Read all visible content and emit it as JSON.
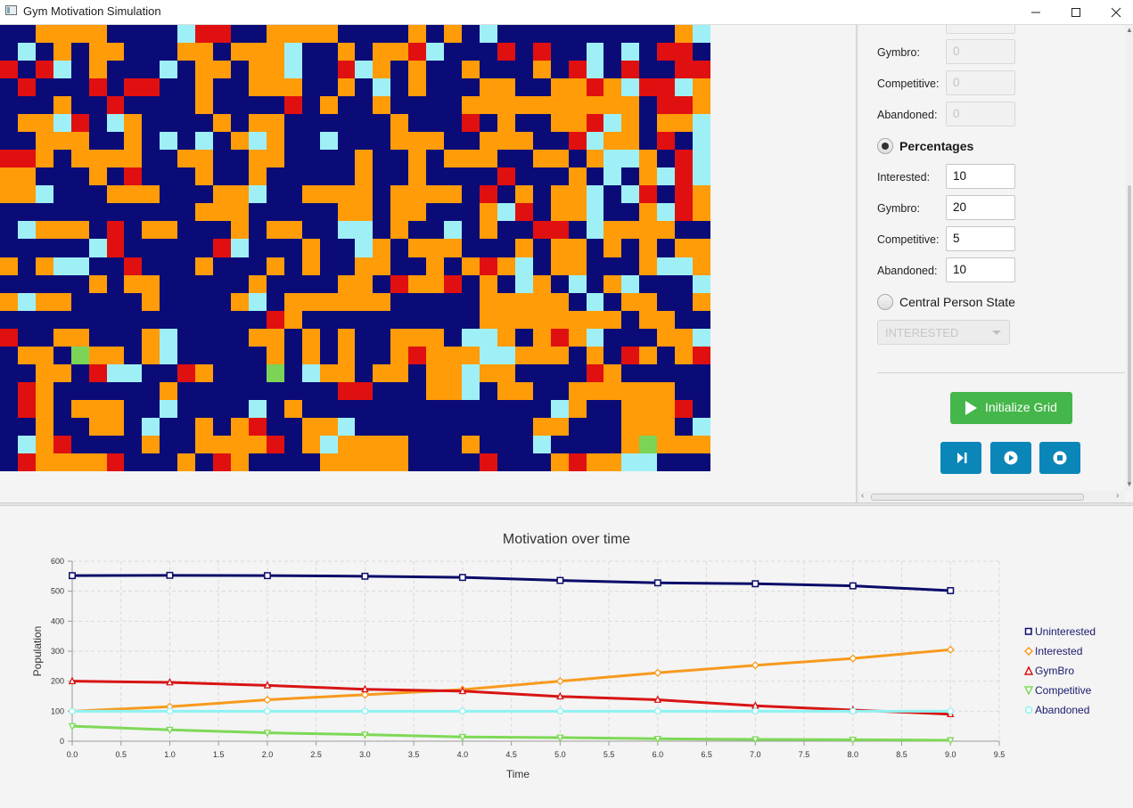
{
  "window": {
    "title": "Gym Motivation Simulation"
  },
  "grid": {
    "columns": 40,
    "rows": 25,
    "legend_colors": {
      "N": "#0b0b78",
      "O": "#ff9c08",
      "R": "#e01010",
      "C": "#9ff0f6",
      "G": "#7cd457"
    },
    "cells": [
      "NNOOOONNNNCRRNNOOOONNNNONONCNNNNNNNNNNOC",
      "NCNONOONNNOONOOOCNNONOORCNNNRNRNNCNCNRRN",
      "RNRCNONNNCNOONOOCNNRCONONNONNNONRCNRNNRR",
      "NRNNNRNRRNNONNOOONNONCNONNNOONNOOROCRRCO",
      "NNNONNRNNNNONNNNRNONNONNNNOOOOOOOOOONRRO",
      "NOOCRNCONNNNONOONNNNNNONNNRNONNOORCONOOC",
      "NNOOONNONCNCNOCONNCNNNOOONNOOONNRCOONRNC",
      "RRONOOOONNOONNOONNNNONNONOOONNOONOCCONRC",
      "OONNNONRNNNONNONNNNNONNONNNNRNNNONCNOCRC",
      "OOCNNNOOONNNOOCNNOOOONOOOONRNONOOCNCRNRO",
      "NNNNNNNNNNNOOONNNNNOONOONNNOCRNOOCNNOCRO",
      "NCOOONRNOONNNONOONNCCNONNCNONNRRNCOOOONN",
      "NNNNNCRNNNNNRCNNNONNCONOOONNNONOONONONOO",
      "ONOCCNNRNNNONNNONONNOONNONOROCNOONNNOCCO",
      "NNNNNONOONNNNNONNNNOONROORNONCONCNOCNNNC",
      "OCOONNNNONNNNOCNOOOOOONNNNNOOOOONCNOONNO",
      "NNNNNNNNNNNNNNNRONNNNNNNNNNOOOOOOOONOONN",
      "RNNOONNNOCNNNNOONONONNOOONCCONOROCNNNOOC",
      "NOONGOONOCNNNNNONONONNOROOOCCOOONONRONOR",
      "NNOONRCCNNRONNNGNCOONOONOOCOONNNNRONNNNN",
      "NRONNNNNNONNNNNNNNNRRNNNOOCNOONNOOOOOONN",
      "NRONOOONNCNNNNCNONNNNNNNNNNNNNNCONNOOORN",
      "NNONNOONCNNONORNNOOCNNNNNNNNNNOONNNOOONC",
      "NCORNNNNONNOOOORNOCOOOONNNONNNCNNNNOGOOO",
      "NROOOORNNNONRONNNNOOOOONNNNRNNNOROOCCNNN"
    ]
  },
  "panel": {
    "counts": {
      "gymbro_label": "Gymbro:",
      "gymbro_value": "0",
      "competitive_label": "Competitive:",
      "competitive_value": "0",
      "abandoned_label": "Abandoned:",
      "abandoned_value": "0"
    },
    "percentages": {
      "label": "Percentages",
      "interested_label": "Interested:",
      "interested_value": "10",
      "gymbro_label": "Gymbro:",
      "gymbro_value": "20",
      "competitive_label": "Competitive:",
      "competitive_value": "5",
      "abandoned_label": "Abandoned:",
      "abandoned_value": "10"
    },
    "central": {
      "label": "Central Person State",
      "selected": "INTERESTED"
    },
    "init_button_label": "Initialize Grid"
  },
  "colors": {
    "accent_green": "#45b649",
    "control_blue": "#0b86b8"
  },
  "chart_data": {
    "type": "line",
    "title": "Motivation over time",
    "xlabel": "Time",
    "ylabel": "Population",
    "xlim": [
      0,
      9.5
    ],
    "ylim": [
      0,
      600
    ],
    "x_ticks": [
      "0.0",
      "0.5",
      "1.0",
      "1.5",
      "2.0",
      "2.5",
      "3.0",
      "3.5",
      "4.0",
      "4.5",
      "5.0",
      "5.5",
      "6.0",
      "6.5",
      "7.0",
      "7.5",
      "8.0",
      "8.5",
      "9.0",
      "9.5"
    ],
    "y_ticks": [
      "0",
      "100",
      "200",
      "300",
      "400",
      "500",
      "600"
    ],
    "grid": true,
    "legend_position": "right",
    "x": [
      0,
      1,
      2,
      3,
      4,
      5,
      6,
      7,
      8,
      9
    ],
    "series": [
      {
        "name": "Uninterested",
        "color": "#0b0b6a",
        "marker": "square",
        "values": [
          552,
          553,
          552,
          550,
          546,
          536,
          528,
          525,
          518,
          502
        ]
      },
      {
        "name": "Interested",
        "color": "#f79a1c",
        "marker": "diamond",
        "values": [
          100,
          115,
          138,
          155,
          172,
          200,
          228,
          253,
          276,
          305
        ]
      },
      {
        "name": "GymBro",
        "color": "#d81414",
        "marker": "triangle-up",
        "values": [
          200,
          196,
          186,
          173,
          167,
          149,
          138,
          118,
          104,
          90
        ]
      },
      {
        "name": "Competitive",
        "color": "#7ed957",
        "marker": "triangle-down",
        "values": [
          50,
          38,
          28,
          22,
          14,
          12,
          8,
          6,
          5,
          3
        ]
      },
      {
        "name": "Abandoned",
        "color": "#8ef2f2",
        "marker": "circle",
        "values": [
          100,
          100,
          100,
          100,
          100,
          100,
          100,
          100,
          100,
          100
        ]
      }
    ]
  }
}
